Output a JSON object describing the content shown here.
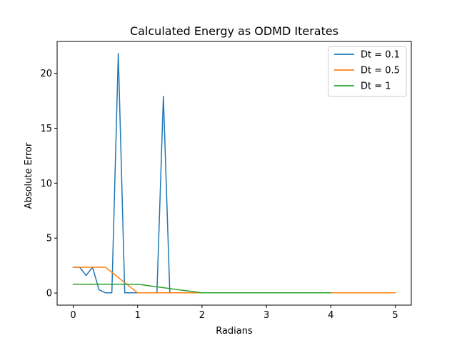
{
  "chart_data": {
    "type": "line",
    "title": "Calculated Energy as ODMD Iterates",
    "xlabel": "Radians",
    "ylabel": "Absolute Error",
    "xlim": [
      -0.25,
      5.25
    ],
    "ylim": [
      -1.1,
      22.9
    ],
    "xticks": [
      0,
      1,
      2,
      3,
      4,
      5
    ],
    "yticks": [
      0,
      5,
      10,
      15,
      20
    ],
    "grid": false,
    "legend_position": "top-right",
    "series": [
      {
        "name": "Dt = 0.1",
        "color": "#1f77b4",
        "x": [
          0,
          0.1,
          0.2,
          0.3,
          0.4,
          0.5,
          0.6,
          0.7,
          0.8,
          0.9,
          1.0,
          1.1,
          1.2,
          1.3,
          1.4,
          1.5,
          1.6,
          1.7,
          1.8,
          1.9,
          2.0,
          2.1,
          2.2,
          2.3,
          2.4,
          2.5,
          2.6,
          2.7,
          2.8,
          2.9,
          3.0,
          3.1,
          3.2,
          3.3,
          3.4,
          3.5,
          3.6,
          3.7,
          3.8,
          3.9,
          4.0
        ],
        "y": [
          2.35,
          2.35,
          1.6,
          2.35,
          0.3,
          0.02,
          0.02,
          21.8,
          0.02,
          0.02,
          0.02,
          0.02,
          0.02,
          0.02,
          17.9,
          0.02,
          0.02,
          0.02,
          0.02,
          0.02,
          0.02,
          0.02,
          0.02,
          0.02,
          0.02,
          0.02,
          0.02,
          0.02,
          0.02,
          0.02,
          0.02,
          0.02,
          0.02,
          0.02,
          0.02,
          0.02,
          0.02,
          0.02,
          0.02,
          0.02,
          0.02
        ]
      },
      {
        "name": "Dt = 0.5",
        "color": "#ff7f0e",
        "x": [
          0,
          0.5,
          1.0,
          1.5,
          2.0,
          2.5,
          3.0,
          3.5,
          4.0,
          4.5,
          5.0
        ],
        "y": [
          2.35,
          2.35,
          0.02,
          0.02,
          0.02,
          0.02,
          0.02,
          0.02,
          0.02,
          0.02,
          0.02
        ]
      },
      {
        "name": "Dt = 1",
        "color": "#2ca02c",
        "x": [
          0,
          1,
          2,
          3,
          4
        ],
        "y": [
          0.8,
          0.8,
          0.02,
          0.02,
          0.02
        ]
      }
    ]
  }
}
